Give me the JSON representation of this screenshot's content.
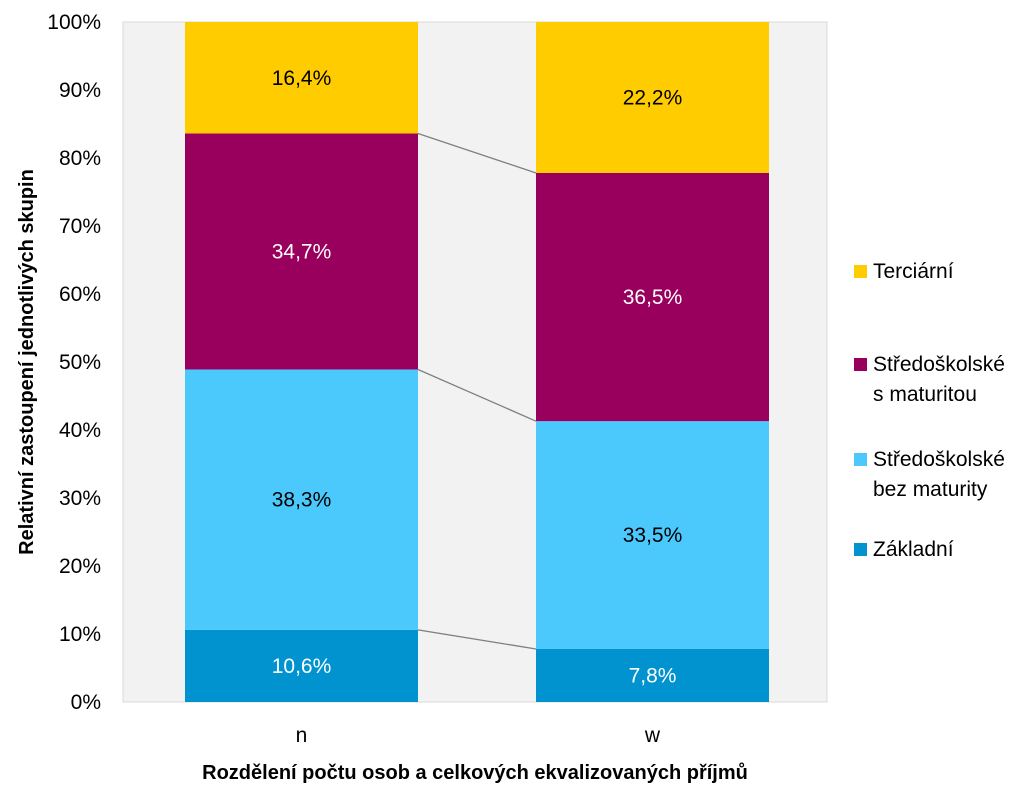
{
  "chart_data": {
    "type": "bar",
    "stacked": "percent",
    "categories": [
      "n",
      "w"
    ],
    "series": [
      {
        "name": "Základní",
        "values": [
          10.6,
          7.8
        ],
        "labels": [
          "10,6%",
          "7,8%"
        ],
        "color": "#0093D0",
        "label_color": "#ffffff"
      },
      {
        "name": "Středoškolské bez maturity",
        "values": [
          38.3,
          33.5
        ],
        "labels": [
          "38,3%",
          "33,5%"
        ],
        "color": "#4BC9FC",
        "label_color": "#000000"
      },
      {
        "name": "Středoškolské s maturitou",
        "values": [
          34.7,
          36.5
        ],
        "labels": [
          "34,7%",
          "36,5%"
        ],
        "color": "#99005E",
        "label_color": "#ffffff"
      },
      {
        "name": "Terciární",
        "values": [
          16.4,
          22.2
        ],
        "labels": [
          "16,4%",
          "22,2%"
        ],
        "color": "#FFCC00",
        "label_color": "#000000"
      }
    ],
    "legend": [
      {
        "lines": [
          "Terciární"
        ],
        "color": "#FFCC00"
      },
      {
        "lines": [
          "Středoškolské",
          "s maturitou"
        ],
        "color": "#99005E"
      },
      {
        "lines": [
          "Středoškolské",
          "bez maturity"
        ],
        "color": "#4BC9FC"
      },
      {
        "lines": [
          "Základní"
        ],
        "color": "#0093D0"
      }
    ],
    "yticks": [
      "0%",
      "10%",
      "20%",
      "30%",
      "40%",
      "50%",
      "60%",
      "70%",
      "80%",
      "90%",
      "100%"
    ],
    "ylim": [
      0,
      100
    ],
    "xlabel": "Rozdělení počtu osob a celkových ekvalizovaných příjmů",
    "ylabel": "Relativní zastoupení jednotlivých skupin",
    "legend_position": "right",
    "grid": false,
    "series_lines": true,
    "plot_background": "#F2F2F2"
  }
}
